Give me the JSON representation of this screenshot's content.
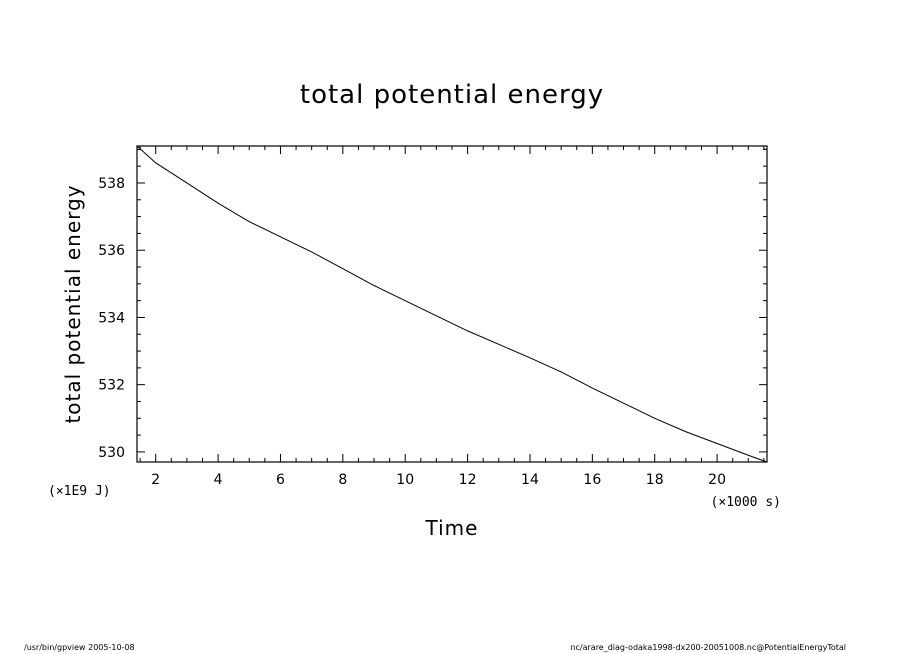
{
  "chart_data": {
    "type": "line",
    "title": "total potential energy",
    "xlabel": "Time",
    "ylabel": "total potential energy",
    "x_unit": "(×1000 s)",
    "y_unit": "(×1E9 J)",
    "xlim": [
      1.4,
      21.6
    ],
    "ylim": [
      529.7,
      539.1
    ],
    "x_major_ticks": [
      2,
      4,
      6,
      8,
      10,
      12,
      14,
      16,
      18,
      20
    ],
    "x_tick_labels": [
      "2",
      "4",
      "6",
      "8",
      "10",
      "12",
      "14",
      "16",
      "18",
      "20"
    ],
    "y_major_ticks": [
      530,
      532,
      534,
      536,
      538
    ],
    "y_tick_labels": [
      "530",
      "532",
      "534",
      "536",
      "538"
    ],
    "grid": false,
    "series": [
      {
        "x": [
          1.4,
          2.0,
          3.0,
          4.0,
          5.0,
          6.0,
          7.0,
          8.0,
          9.0,
          10.0,
          11.0,
          12.0,
          13.0,
          14.0,
          15.0,
          16.0,
          17.0,
          18.0,
          19.0,
          20.0,
          21.0,
          21.6
        ],
        "y": [
          539.1,
          538.6,
          538.0,
          537.4,
          536.85,
          536.4,
          535.95,
          535.45,
          534.95,
          534.5,
          534.05,
          533.6,
          533.2,
          532.8,
          532.38,
          531.9,
          531.45,
          531.0,
          530.6,
          530.25,
          529.9,
          529.7
        ]
      }
    ]
  },
  "footer": {
    "left": "/usr/bin/gpview   2005-10-08",
    "right": "nc/arare_diag-odaka1998-dx200-20051008.nc@PotentialEnergyTotal"
  }
}
